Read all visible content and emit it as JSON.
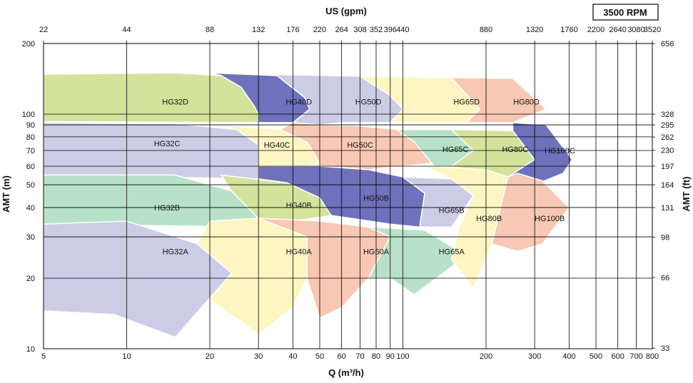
{
  "chart_data": {
    "type": "area",
    "title": "",
    "badge": "3500 RPM",
    "xlabel": "Q (m³/h)",
    "x2label": "US (gpm)",
    "ylabel": "AMT (m)",
    "y2label": "AMT (ft)",
    "x_scale": "log",
    "y_scale": "log",
    "xlim": [
      5,
      800
    ],
    "ylim": [
      10,
      200
    ],
    "grid": true,
    "x_ticks": [
      5,
      10,
      20,
      30,
      40,
      50,
      60,
      70,
      80,
      90,
      100,
      200,
      300,
      400,
      500,
      600,
      700,
      800
    ],
    "x_tick_labels": [
      "5",
      "10",
      "20",
      "30",
      "40",
      "50",
      "60",
      "70",
      "80",
      "90",
      "100",
      "200",
      "300",
      "400",
      "500",
      "600",
      "700",
      "800"
    ],
    "x2_ticks": [
      22,
      44,
      88,
      132,
      176,
      220,
      264,
      308,
      352,
      396,
      440,
      880,
      1320,
      1760,
      2200,
      2640,
      3080,
      3520
    ],
    "x2_tick_labels": [
      "22",
      "44",
      "88",
      "132",
      "176",
      "220",
      "264",
      "308",
      "352",
      "396",
      "440",
      "880",
      "1320",
      "1760",
      "2200",
      "2640",
      "3080",
      "3520"
    ],
    "y_ticks": [
      10,
      20,
      30,
      40,
      50,
      60,
      70,
      80,
      90,
      100,
      200
    ],
    "y_tick_labels": [
      "10",
      "20",
      "30",
      "40",
      "50",
      "60",
      "70",
      "80",
      "90",
      "100",
      "200"
    ],
    "y2_ticks": [
      33,
      66,
      98,
      131,
      164,
      197,
      230,
      262,
      295,
      328,
      656
    ],
    "y2_tick_labels": [
      "33",
      "66",
      "98",
      "131",
      "164",
      "197",
      "230",
      "262",
      "295",
      "328",
      "656"
    ],
    "regions": [
      {
        "name": "HG32D",
        "color": "#d4e29c",
        "polygon": [
          [
            5,
            148
          ],
          [
            15,
            150
          ],
          [
            22,
            146
          ],
          [
            26,
            130
          ],
          [
            29,
            108
          ],
          [
            30,
            100
          ],
          [
            30,
            92
          ],
          [
            5,
            93
          ]
        ],
        "label_at": [
          15,
          113
        ]
      },
      {
        "name": "HG32C",
        "color": "#cccce6",
        "polygon": [
          [
            5,
            92
          ],
          [
            15,
            91
          ],
          [
            25,
            86
          ],
          [
            30,
            74
          ],
          [
            30,
            53
          ],
          [
            5,
            55
          ]
        ],
        "label_at": [
          14,
          75
        ]
      },
      {
        "name": "HG32B",
        "color": "#b8e2c8",
        "polygon": [
          [
            5,
            55
          ],
          [
            15,
            55
          ],
          [
            24,
            47
          ],
          [
            30,
            36
          ],
          [
            30,
            33
          ],
          [
            5,
            34
          ]
        ],
        "label_at": [
          14,
          40
        ]
      },
      {
        "name": "HG32A",
        "color": "#cccce6",
        "polygon": [
          [
            5,
            34
          ],
          [
            10,
            35
          ],
          [
            18,
            28
          ],
          [
            24,
            21
          ],
          [
            15,
            11.2
          ],
          [
            9,
            14
          ],
          [
            5,
            14.5
          ]
        ],
        "label_at": [
          15,
          26
        ]
      },
      {
        "name": "HG40D",
        "color": "#6f71bc",
        "polygon": [
          [
            20,
            150
          ],
          [
            35,
            146
          ],
          [
            44,
            118
          ],
          [
            46,
            105
          ],
          [
            40,
            92
          ],
          [
            30,
            92
          ],
          [
            30,
            100
          ],
          [
            29,
            108
          ],
          [
            26,
            130
          ],
          [
            22,
            146
          ]
        ],
        "label_at": [
          42,
          113
        ]
      },
      {
        "name": "HG40C",
        "color": "#fdf6c3",
        "polygon": [
          [
            22,
            90
          ],
          [
            36,
            86
          ],
          [
            45,
            76
          ],
          [
            50,
            62
          ],
          [
            30,
            53
          ],
          [
            30,
            74
          ],
          [
            25,
            86
          ]
        ],
        "label_at": [
          35,
          74
        ]
      },
      {
        "name": "HG40B",
        "color": "#d4e29c",
        "polygon": [
          [
            22,
            55
          ],
          [
            38,
            51
          ],
          [
            50,
            44
          ],
          [
            55,
            37
          ],
          [
            40,
            35
          ],
          [
            30,
            36
          ],
          [
            24,
            47
          ]
        ],
        "label_at": [
          42,
          41
        ]
      },
      {
        "name": "HG40A",
        "color": "#fdf6c3",
        "polygon": [
          [
            20,
            35
          ],
          [
            30,
            36
          ],
          [
            40,
            35
          ],
          [
            45,
            30
          ],
          [
            45,
            20
          ],
          [
            40,
            15
          ],
          [
            30,
            11.5
          ],
          [
            20,
            16.3
          ],
          [
            24,
            21
          ],
          [
            18,
            28
          ]
        ],
        "label_at": [
          42,
          26
        ]
      },
      {
        "name": "HG50D",
        "color": "#cccce6",
        "polygon": [
          [
            30,
            148
          ],
          [
            70,
            145
          ],
          [
            90,
            120
          ],
          [
            100,
            105
          ],
          [
            90,
            92
          ],
          [
            60,
            92
          ],
          [
            50,
            90
          ],
          [
            40,
            92
          ],
          [
            46,
            105
          ],
          [
            44,
            118
          ],
          [
            35,
            146
          ]
        ],
        "label_at": [
          75,
          113
        ]
      },
      {
        "name": "HG50C",
        "color": "#f7c8b4",
        "polygon": [
          [
            40,
            92
          ],
          [
            50,
            90
          ],
          [
            70,
            89
          ],
          [
            95,
            86
          ],
          [
            110,
            76
          ],
          [
            130,
            62
          ],
          [
            75,
            58
          ],
          [
            50,
            60
          ],
          [
            50,
            62
          ],
          [
            45,
            76
          ],
          [
            36,
            86
          ]
        ],
        "label_at": [
          70,
          74
        ]
      },
      {
        "name": "HG50B",
        "color": "#6f71bc",
        "polygon": [
          [
            30,
            60
          ],
          [
            50,
            60
          ],
          [
            75,
            58
          ],
          [
            100,
            54
          ],
          [
            120,
            46
          ],
          [
            115,
            33
          ],
          [
            90,
            34
          ],
          [
            55,
            37
          ],
          [
            50,
            44
          ],
          [
            38,
            51
          ],
          [
            30,
            53
          ]
        ],
        "label_at": [
          80,
          44
        ]
      },
      {
        "name": "HG50A",
        "color": "#f7c8b4",
        "polygon": [
          [
            30,
            36
          ],
          [
            50,
            35
          ],
          [
            75,
            33
          ],
          [
            90,
            30
          ],
          [
            105,
            25
          ],
          [
            75,
            20
          ],
          [
            60,
            15
          ],
          [
            50,
            13.5
          ],
          [
            45,
            20
          ],
          [
            45,
            30
          ]
        ],
        "label_at": [
          80,
          26
        ]
      },
      {
        "name": "HG65D",
        "color": "#fdf6c3",
        "polygon": [
          [
            70,
            145
          ],
          [
            150,
            143
          ],
          [
            190,
            105
          ],
          [
            170,
            92
          ],
          [
            100,
            92
          ],
          [
            90,
            92
          ],
          [
            100,
            105
          ],
          [
            90,
            120
          ]
        ],
        "label_at": [
          170,
          113
        ]
      },
      {
        "name": "HG65C",
        "color": "#b8e2c8",
        "polygon": [
          [
            95,
            86
          ],
          [
            150,
            86
          ],
          [
            180,
            70
          ],
          [
            185,
            60
          ],
          [
            130,
            60
          ],
          [
            110,
            76
          ]
        ],
        "label_at": [
          155,
          71
        ]
      },
      {
        "name": "HG65B",
        "color": "#cccce6",
        "polygon": [
          [
            100,
            54
          ],
          [
            150,
            53
          ],
          [
            180,
            45
          ],
          [
            150,
            33
          ],
          [
            115,
            33
          ],
          [
            120,
            46
          ]
        ],
        "label_at": [
          150,
          39
        ]
      },
      {
        "name": "HG65A",
        "color": "#b8e2c8",
        "polygon": [
          [
            75,
            33
          ],
          [
            120,
            32
          ],
          [
            170,
            25
          ],
          [
            110,
            17
          ],
          [
            90,
            20
          ],
          [
            75,
            20
          ],
          [
            90,
            30
          ]
        ],
        "label_at": [
          150,
          26
        ]
      },
      {
        "name": "HG80D",
        "color": "#f7c8b4",
        "polygon": [
          [
            150,
            143
          ],
          [
            250,
            142
          ],
          [
            330,
            105
          ],
          [
            250,
            92
          ],
          [
            190,
            92
          ],
          [
            170,
            92
          ],
          [
            190,
            105
          ]
        ],
        "label_at": [
          280,
          113
        ]
      },
      {
        "name": "HG80C",
        "color": "#d4e29c",
        "polygon": [
          [
            150,
            86
          ],
          [
            250,
            85
          ],
          [
            300,
            64
          ],
          [
            240,
            54
          ],
          [
            150,
            60
          ],
          [
            180,
            70
          ]
        ],
        "label_at": [
          255,
          71
        ]
      },
      {
        "name": "HG80B",
        "color": "#fdf6c3",
        "polygon": [
          [
            120,
            60
          ],
          [
            200,
            58
          ],
          [
            240,
            54
          ],
          [
            210,
            28
          ],
          [
            180,
            18
          ],
          [
            150,
            24
          ],
          [
            160,
            33
          ],
          [
            180,
            45
          ],
          [
            150,
            53
          ]
        ],
        "label_at": [
          205,
          36
        ]
      },
      {
        "name": "HG100C",
        "color": "#6f71bc",
        "polygon": [
          [
            250,
            92
          ],
          [
            330,
            90
          ],
          [
            410,
            64
          ],
          [
            380,
            56
          ],
          [
            300,
            50
          ],
          [
            260,
            44
          ],
          [
            250,
            48
          ],
          [
            240,
            54
          ],
          [
            300,
            64
          ],
          [
            250,
            85
          ]
        ],
        "label_at": [
          370,
          70
        ]
      },
      {
        "name": "HG100B",
        "color": "#f7c8b4",
        "polygon": [
          [
            260,
            56
          ],
          [
            320,
            52
          ],
          [
            400,
            40
          ],
          [
            320,
            28
          ],
          [
            260,
            26
          ],
          [
            210,
            28
          ],
          [
            240,
            54
          ]
        ],
        "label_at": [
          340,
          36
        ]
      }
    ]
  }
}
